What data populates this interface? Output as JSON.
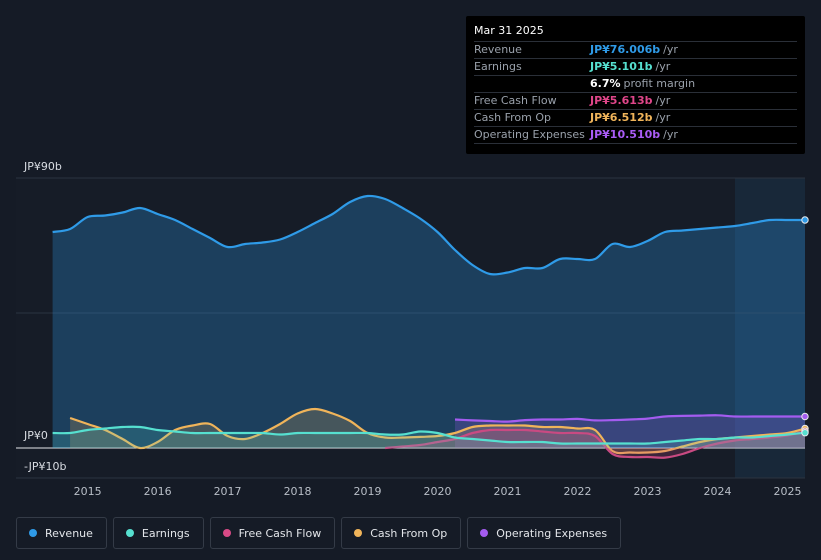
{
  "tooltip": {
    "date": "Mar 31 2025",
    "rows": [
      {
        "label": "Revenue",
        "value": "JP¥76.006b",
        "unit": "/yr",
        "color": "#2f9be8"
      },
      {
        "label": "Earnings",
        "value": "JP¥5.101b",
        "unit": "/yr",
        "color": "#56e0d0"
      },
      {
        "label": "",
        "value": "6.7%",
        "unit": "profit margin",
        "color": "#ffffff"
      },
      {
        "label": "Free Cash Flow",
        "value": "JP¥5.613b",
        "unit": "/yr",
        "color": "#e0468a"
      },
      {
        "label": "Cash From Op",
        "value": "JP¥6.512b",
        "unit": "/yr",
        "color": "#f0b45a"
      },
      {
        "label": "Operating Expenses",
        "value": "JP¥10.510b",
        "unit": "/yr",
        "color": "#a95cf5"
      }
    ]
  },
  "legend": [
    {
      "name": "Revenue",
      "color": "#2f9be8"
    },
    {
      "name": "Earnings",
      "color": "#56e0d0"
    },
    {
      "name": "Free Cash Flow",
      "color": "#d84a86"
    },
    {
      "name": "Cash From Op",
      "color": "#f0b45a"
    },
    {
      "name": "Operating Expenses",
      "color": "#a45cf0"
    }
  ],
  "chart_data": {
    "type": "area",
    "title": "",
    "y_unit": "JP¥ billions",
    "ylim": [
      -10,
      90
    ],
    "y_tick_labels": [
      {
        "value": 90,
        "label": "JP¥90b"
      },
      {
        "value": 0,
        "label": "JP¥0"
      },
      {
        "value": -10,
        "label": "-JP¥10b"
      }
    ],
    "xlim": [
      2014.42,
      2025.25
    ],
    "x_ticks": [
      "2015",
      "2016",
      "2017",
      "2018",
      "2019",
      "2020",
      "2021",
      "2022",
      "2023",
      "2024",
      "2025"
    ],
    "highlight_from": 2024.25,
    "series": [
      {
        "name": "Revenue",
        "color": "#2f9be8",
        "fill": true,
        "x": [
          2014.5,
          2014.75,
          2015.0,
          2015.25,
          2015.5,
          2015.75,
          2016.0,
          2016.25,
          2016.5,
          2016.75,
          2017.0,
          2017.25,
          2017.5,
          2017.75,
          2018.0,
          2018.25,
          2018.5,
          2018.75,
          2019.0,
          2019.25,
          2019.5,
          2019.75,
          2020.0,
          2020.25,
          2020.5,
          2020.75,
          2021.0,
          2021.25,
          2021.5,
          2021.75,
          2022.0,
          2022.25,
          2022.5,
          2022.75,
          2023.0,
          2023.25,
          2023.5,
          2023.75,
          2024.0,
          2024.25,
          2024.5,
          2024.75,
          2025.0,
          2025.25
        ],
        "y": [
          72,
          73,
          77,
          77.5,
          78.5,
          80,
          78,
          76,
          73,
          70,
          67,
          68,
          68.5,
          69.5,
          72,
          75,
          78,
          82,
          84,
          83,
          80,
          76.5,
          72,
          66,
          61,
          58,
          58.5,
          60,
          60,
          63,
          63,
          63,
          68,
          67,
          69,
          72,
          72.5,
          73,
          73.5,
          74,
          75,
          76,
          76,
          76
        ]
      },
      {
        "name": "Earnings",
        "color": "#56e0d0",
        "fill": true,
        "x": [
          2014.5,
          2014.75,
          2015.0,
          2015.25,
          2015.5,
          2015.75,
          2016.0,
          2016.25,
          2016.5,
          2016.75,
          2017.0,
          2017.25,
          2017.5,
          2017.75,
          2018.0,
          2018.25,
          2018.5,
          2018.75,
          2019.0,
          2019.25,
          2019.5,
          2019.75,
          2020.0,
          2020.25,
          2020.5,
          2020.75,
          2021.0,
          2021.25,
          2021.5,
          2021.75,
          2022.0,
          2022.25,
          2022.5,
          2022.75,
          2023.0,
          2023.25,
          2023.5,
          2023.75,
          2024.0,
          2024.25,
          2024.5,
          2024.75,
          2025.0,
          2025.25
        ],
        "y": [
          5,
          5,
          6,
          6.5,
          7,
          7,
          6,
          5.5,
          5,
          5,
          5,
          5,
          5,
          4.5,
          5,
          5,
          5,
          5,
          5,
          4.5,
          4.5,
          5.5,
          5,
          3.5,
          3,
          2.5,
          2,
          2,
          2,
          1.5,
          1.5,
          1.5,
          1.5,
          1.5,
          1.5,
          2,
          2.5,
          3,
          3,
          3.5,
          3.5,
          4,
          4.5,
          5.1
        ]
      },
      {
        "name": "Free Cash Flow",
        "color": "#c94a82",
        "fill": true,
        "x": [
          2019.25,
          2019.5,
          2019.75,
          2020.0,
          2020.25,
          2020.5,
          2020.75,
          2021.0,
          2021.25,
          2021.5,
          2021.75,
          2022.0,
          2022.25,
          2022.5,
          2022.75,
          2023.0,
          2023.25,
          2023.5,
          2023.75,
          2024.0,
          2024.25,
          2024.5,
          2024.75,
          2025.0,
          2025.25
        ],
        "y": [
          0,
          0.5,
          1,
          2,
          3,
          5,
          6,
          6,
          6,
          5.5,
          5,
          5,
          4,
          -2,
          -3,
          -3,
          -3.2,
          -2,
          0,
          1.5,
          2.5,
          3,
          3.5,
          4.2,
          5.6
        ]
      },
      {
        "name": "Cash From Op",
        "color": "#f0b45a",
        "fill": true,
        "x": [
          2014.75,
          2015.0,
          2015.25,
          2015.5,
          2015.75,
          2016.0,
          2016.25,
          2016.5,
          2016.75,
          2017.0,
          2017.25,
          2017.5,
          2017.75,
          2018.0,
          2018.25,
          2018.5,
          2018.75,
          2019.0,
          2019.25,
          2019.5,
          2019.75,
          2020.0,
          2020.25,
          2020.5,
          2020.75,
          2021.0,
          2021.25,
          2021.5,
          2021.75,
          2022.0,
          2022.25,
          2022.5,
          2022.75,
          2023.0,
          2023.25,
          2023.5,
          2023.75,
          2024.0,
          2024.25,
          2024.5,
          2024.75,
          2025.0,
          2025.25
        ],
        "y": [
          10,
          8,
          6,
          3,
          0,
          2,
          6,
          7.5,
          8,
          4,
          3,
          5,
          8,
          11.5,
          13,
          11.5,
          9,
          5,
          3.5,
          3.5,
          3.7,
          4,
          5,
          7,
          7.5,
          7.5,
          7.5,
          7,
          7,
          6.5,
          6,
          -1,
          -1.5,
          -1.5,
          -1,
          0.5,
          2,
          3,
          3.5,
          4,
          4.5,
          5,
          6.5
        ]
      },
      {
        "name": "Operating Expenses",
        "color": "#a45cf0",
        "fill": true,
        "x": [
          2020.25,
          2020.5,
          2020.75,
          2021.0,
          2021.25,
          2021.5,
          2021.75,
          2022.0,
          2022.25,
          2022.5,
          2022.75,
          2023.0,
          2023.25,
          2023.5,
          2023.75,
          2024.0,
          2024.25,
          2024.5,
          2024.75,
          2025.0,
          2025.25
        ],
        "y": [
          9.5,
          9.2,
          9,
          8.8,
          9.3,
          9.5,
          9.5,
          9.7,
          9.2,
          9.3,
          9.5,
          9.8,
          10.5,
          10.7,
          10.8,
          10.9,
          10.5,
          10.5,
          10.5,
          10.5,
          10.5
        ]
      }
    ]
  }
}
